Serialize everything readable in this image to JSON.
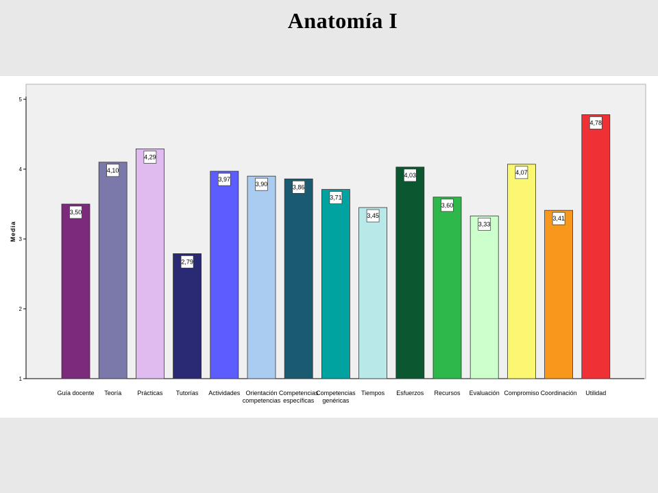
{
  "slide": {
    "title": "Anatomía I"
  },
  "chart_data": {
    "type": "bar",
    "title": "Anatomía I",
    "ylabel": "Media",
    "xlabel": "",
    "ylim": [
      1,
      5
    ],
    "yticks": [
      1,
      2,
      3,
      4,
      5
    ],
    "grid": false,
    "legend": "none",
    "plot_background": "#f0f0f0",
    "categories": [
      "Guía docente",
      "Teoría",
      "Prácticas",
      "Tutorías",
      "Actividades",
      "Orientación competencias",
      "Competencias específicas",
      "Competencias genéricas",
      "Tiempos",
      "Esfuerzos",
      "Recursos",
      "Evaluación",
      "Compromiso",
      "Coordinación",
      "Utilidad"
    ],
    "category_lines": [
      [
        "Guía docente"
      ],
      [
        "Teoría"
      ],
      [
        "Prácticas"
      ],
      [
        "Tutorías"
      ],
      [
        "Actividades"
      ],
      [
        "Orientación",
        "competencias"
      ],
      [
        "Competencias",
        "específicas"
      ],
      [
        "Competencias",
        "genéricas"
      ],
      [
        "Tiempos"
      ],
      [
        "Esfuerzos"
      ],
      [
        "Recursos"
      ],
      [
        "Evaluación"
      ],
      [
        "Compromiso"
      ],
      [
        "Coordinación"
      ],
      [
        "Utilidad"
      ]
    ],
    "values": [
      3.5,
      4.1,
      4.29,
      2.79,
      3.97,
      3.9,
      3.86,
      3.71,
      3.45,
      4.03,
      3.6,
      3.33,
      4.07,
      3.41,
      4.78
    ],
    "value_labels": [
      "3,50",
      "4,10",
      "4,29",
      "2,79",
      "3,97",
      "3,90",
      "3,86",
      "3,71",
      "3,45",
      "4,03",
      "3,60",
      "3,33",
      "4,07",
      "3,41",
      "4,78"
    ],
    "colors": [
      "#7b2a7c",
      "#7a79a9",
      "#dfbbf0",
      "#2a2a74",
      "#5c5cff",
      "#aaccf0",
      "#1b5b72",
      "#00a3a0",
      "#b8e8e8",
      "#0b5730",
      "#2fb84a",
      "#ccffcc",
      "#fbf770",
      "#f7981c",
      "#ef3035"
    ]
  }
}
